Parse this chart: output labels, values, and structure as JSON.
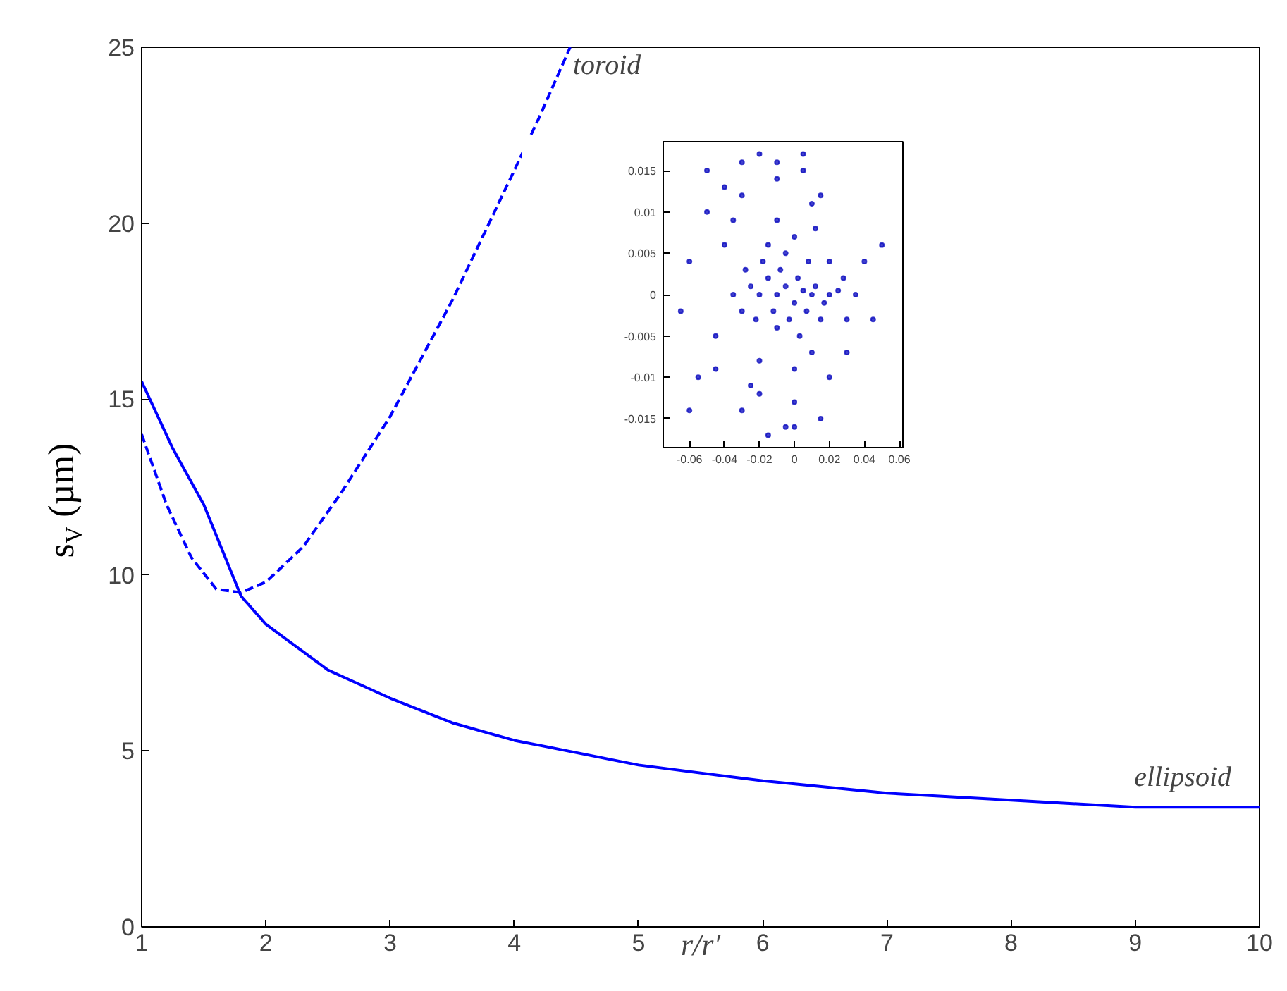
{
  "chart_data": [
    {
      "type": "line",
      "xlabel": "r/r′",
      "ylabel": "s$_{V}$ (µm)",
      "xlim": [
        1,
        10
      ],
      "ylim": [
        0,
        25
      ],
      "xticks": [
        1,
        2,
        3,
        4,
        5,
        6,
        7,
        8,
        9,
        10
      ],
      "yticks": [
        0,
        5,
        10,
        15,
        20,
        25
      ],
      "grid": false,
      "marker": "none",
      "series": [
        {
          "name": "toroid",
          "color": "#0000ff",
          "line_style": "dashed",
          "x": [
            1,
            1.2,
            1.4,
            1.6,
            1.8,
            2,
            2.3,
            2.6,
            3,
            3.5,
            4,
            4.2,
            4.45
          ],
          "values": [
            14,
            12,
            10.5,
            9.6,
            9.5,
            9.8,
            10.8,
            12.3,
            14.5,
            17.8,
            21.5,
            23,
            25
          ]
        },
        {
          "name": "ellipsoid",
          "color": "#0000ff",
          "line_style": "solid",
          "x": [
            1,
            1.25,
            1.5,
            1.8,
            2,
            2.5,
            3,
            3.5,
            4,
            5,
            6,
            7,
            8,
            9,
            10
          ],
          "values": [
            15.5,
            13.6,
            12,
            9.4,
            8.6,
            7.3,
            6.5,
            5.8,
            5.3,
            4.6,
            4.15,
            3.8,
            3.6,
            3.4,
            3.4
          ]
        }
      ]
    },
    {
      "type": "scatter",
      "xlim": [
        -0.075,
        0.062
      ],
      "ylim": [
        -0.0185,
        0.0185
      ],
      "xticks": [
        {
          "value": -0.06,
          "label": "-0.06"
        },
        {
          "value": -0.04,
          "label": "-0.04"
        },
        {
          "value": -0.02,
          "label": "-0.02"
        },
        0,
        {
          "value": 0.02,
          "label": "0.02"
        },
        {
          "value": 0.04,
          "label": "0.04"
        },
        {
          "value": 0.06,
          "label": "0.06"
        }
      ],
      "yticks": [
        {
          "value": -0.015,
          "label": "-0.015"
        },
        {
          "value": -0.01,
          "label": "-0.01"
        },
        {
          "value": -0.005,
          "label": "-0.005"
        },
        0,
        {
          "value": 0.005,
          "label": "0.005"
        },
        {
          "value": 0.01,
          "label": "0.01"
        },
        {
          "value": 0.015,
          "label": "0.015"
        }
      ],
      "grid": false,
      "marker": "circle",
      "series": [
        {
          "color": "#1010c0",
          "x": [
            -0.01,
            -0.005,
            0,
            0.005,
            0.01,
            -0.015,
            -0.012,
            -0.008,
            -0.003,
            0.002,
            0.007,
            0.012,
            0.017,
            0.02,
            0.025,
            -0.02,
            -0.018,
            -0.01,
            -0.005,
            0.003,
            0.008,
            0.015,
            -0.025,
            -0.022,
            -0.015,
            0,
            0.01,
            0.02,
            -0.03,
            -0.028,
            -0.02,
            -0.01,
            0,
            0.012,
            0.028,
            0.03,
            -0.035,
            -0.04,
            -0.045,
            -0.05,
            -0.055,
            -0.06,
            -0.065,
            -0.03,
            -0.02,
            -0.01,
            0,
            0.01,
            0.02,
            -0.03,
            -0.02,
            -0.005,
            0.005,
            0.015,
            0.035,
            0.04,
            0.045,
            -0.04,
            -0.03,
            -0.015,
            0.005,
            -0.045,
            -0.035,
            -0.025,
            -0.01,
            0.0,
            0.015,
            -0.05,
            0.05,
            -0.06,
            0.03
          ],
          "values": [
            0,
            0.001,
            -0.001,
            0.0005,
            0,
            0.002,
            -0.002,
            0.003,
            -0.003,
            0.002,
            -0.002,
            0.001,
            -0.001,
            0,
            0.0005,
            0,
            0.004,
            -0.004,
            0.005,
            -0.005,
            0.004,
            -0.003,
            0.001,
            -0.003,
            0.006,
            0.007,
            -0.007,
            0.004,
            -0.002,
            0.003,
            -0.008,
            0.009,
            -0.009,
            0.008,
            0.002,
            -0.003,
            0,
            0.006,
            -0.005,
            0.01,
            -0.01,
            0.004,
            -0.002,
            0.012,
            -0.012,
            0.014,
            -0.013,
            0.011,
            -0.01,
            0.016,
            0.017,
            -0.016,
            0.015,
            -0.015,
            0,
            0.004,
            -0.003,
            0.013,
            -0.014,
            -0.017,
            0.017,
            -0.009,
            0.009,
            -0.011,
            0.016,
            -0.016,
            0.012,
            0.015,
            0.006,
            -0.014,
            -0.007
          ]
        }
      ]
    }
  ]
}
